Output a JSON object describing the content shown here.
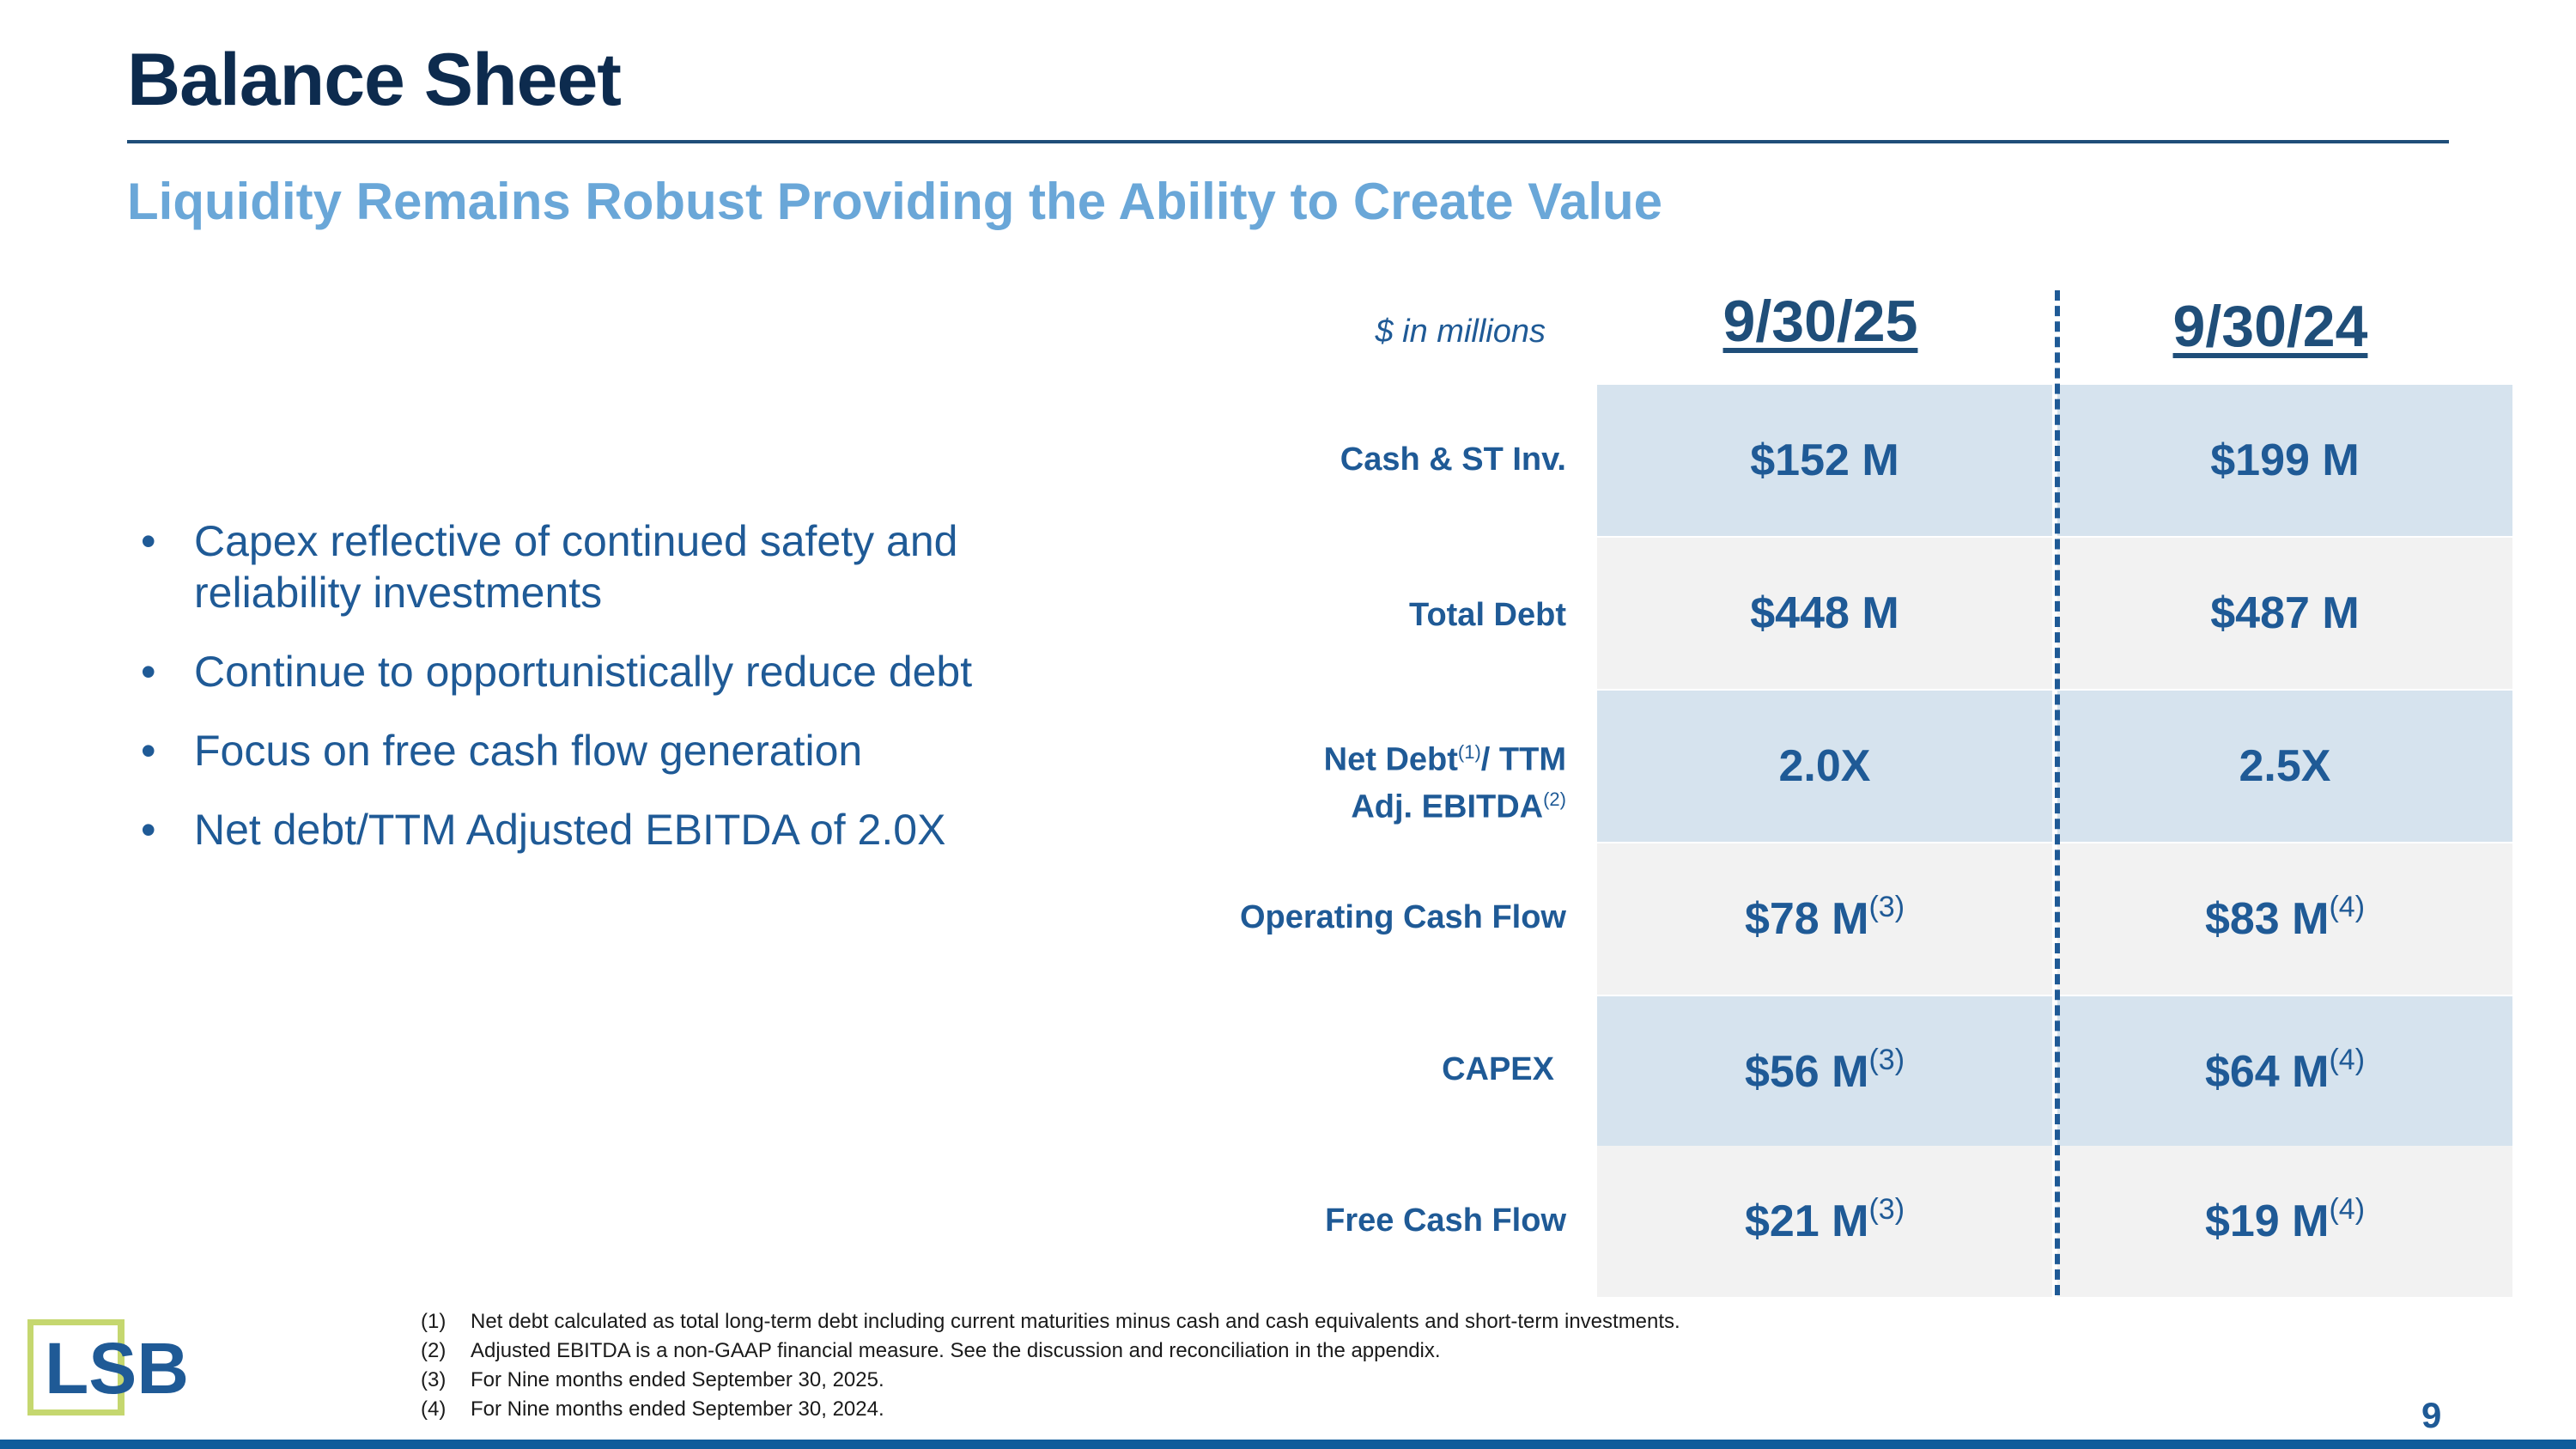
{
  "header": {
    "title": "Balance Sheet",
    "subtitle": "Liquidity Remains Robust Providing the Ability to Create Value"
  },
  "bullets": [
    "Capex reflective of continued safety and reliability investments",
    "Continue to opportunistically reduce debt",
    "Focus on free cash flow generation",
    "Net debt/TTM Adjusted EBITDA of 2.0X"
  ],
  "table": {
    "units": "$ in millions",
    "columns": [
      "9/30/25",
      "9/30/24"
    ],
    "rows": [
      {
        "label": "Cash & ST Inv.",
        "values": [
          "$152 M",
          "$199 M"
        ],
        "notes": [
          "",
          ""
        ]
      },
      {
        "label": "Total Debt",
        "values": [
          "$448 M",
          "$487 M"
        ],
        "notes": [
          "",
          ""
        ]
      },
      {
        "label_line1": "Net Debt",
        "label_note1": "(1)",
        "label_line1b": "/ TTM",
        "label_line2": "Adj. EBITDA",
        "label_note2": "(2)",
        "values": [
          "2.0X",
          "2.5X"
        ],
        "notes": [
          "",
          ""
        ]
      },
      {
        "label": "Operating Cash Flow",
        "values": [
          "$78 M",
          "$83 M"
        ],
        "notes": [
          "(3)",
          "(4)"
        ]
      },
      {
        "label": "CAPEX",
        "values": [
          "$56 M",
          "$64 M"
        ],
        "notes": [
          "(3)",
          "(4)"
        ]
      },
      {
        "label": "Free Cash Flow",
        "values": [
          "$21 M",
          "$19 M"
        ],
        "notes": [
          "(3)",
          "(4)"
        ]
      }
    ]
  },
  "footnotes": [
    {
      "num": "(1)",
      "text": "Net debt calculated as total long-term debt including current maturities minus cash and cash equivalents and short-term investments."
    },
    {
      "num": "(2)",
      "text": "Adjusted EBITDA is a non-GAAP financial measure.  See the discussion and reconciliation in the appendix."
    },
    {
      "num": "(3)",
      "text": "For Nine months ended September 30, 2025."
    },
    {
      "num": "(4)",
      "text": "For Nine months ended September 30, 2024."
    }
  ],
  "logo": {
    "text": "LSB"
  },
  "page_number": "9",
  "colors": {
    "title": "#0d2b4e",
    "accent": "#1f5a96",
    "subtitle": "#6aa7d8",
    "row_blue": "#d6e3ee",
    "row_gray": "#f2f2f2",
    "logo_square": "#c5d76f"
  }
}
